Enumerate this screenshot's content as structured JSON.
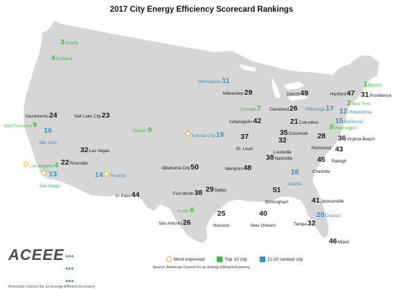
{
  "title": "2017 City Energy Efficiency Scorecard Rankings",
  "colors": {
    "top10": "#3cbe3c",
    "rank11_20": "#2b95cf",
    "other": "#1a1a1a",
    "most_improved": "#e0b33a",
    "land": "#d6d6d6"
  },
  "cities": [
    {
      "id": "seattle",
      "rank": "3",
      "name": "Seattle",
      "tier": "top10",
      "mi": false,
      "layout": "num-name"
    },
    {
      "id": "portland",
      "rank": "4",
      "name": "Portland",
      "tier": "top10",
      "mi": false,
      "layout": "num-name"
    },
    {
      "id": "minneapolis",
      "rank": "11",
      "name": "Minneapolis",
      "tier": "mid",
      "mi": false,
      "layout": "name-num"
    },
    {
      "id": "boston",
      "rank": "1",
      "name": "Boston",
      "tier": "top10",
      "mi": false,
      "layout": "num-name"
    },
    {
      "id": "newyork",
      "rank": "2",
      "name": "New York",
      "tier": "top10",
      "mi": false,
      "layout": "num-name"
    },
    {
      "id": "hartford",
      "rank": "47",
      "name": "Hartford",
      "tier": "rest",
      "mi": false,
      "layout": "name-num"
    },
    {
      "id": "providence",
      "rank": "31",
      "name": "Providence",
      "tier": "rest",
      "mi": false,
      "layout": "num-name"
    },
    {
      "id": "milwaukee",
      "rank": "29",
      "name": "Milwaukee",
      "tier": "rest",
      "mi": false,
      "layout": "name-num"
    },
    {
      "id": "detroit",
      "rank": "49",
      "name": "Detroit",
      "tier": "rest",
      "mi": false,
      "layout": "name-num"
    },
    {
      "id": "philadelphia",
      "rank": "12",
      "name": "Philadelphia",
      "tier": "mid",
      "mi": false,
      "layout": "num-name"
    },
    {
      "id": "chicago",
      "rank": "7",
      "name": "Chicago",
      "tier": "top10",
      "mi": false,
      "layout": "name-num"
    },
    {
      "id": "cleveland",
      "rank": "26",
      "name": "Cleveland",
      "tier": "rest",
      "mi": false,
      "layout": "name-num"
    },
    {
      "id": "pittsburgh",
      "rank": "17",
      "name": "Pittsburgh",
      "tier": "mid",
      "mi": false,
      "layout": "name-num"
    },
    {
      "id": "baltimore",
      "rank": "15",
      "name": "Baltimore",
      "tier": "mid",
      "mi": false,
      "layout": "num-name"
    },
    {
      "id": "washington",
      "rank": "8",
      "name": "Washington",
      "tier": "top10",
      "mi": false,
      "layout": "num-name"
    },
    {
      "id": "sacramento",
      "rank": "24",
      "name": "Sacramento",
      "tier": "rest",
      "mi": false,
      "layout": "name-num"
    },
    {
      "id": "saltlake",
      "rank": "23",
      "name": "Salt Lake City",
      "tier": "rest",
      "mi": false,
      "layout": "name-num"
    },
    {
      "id": "indianapolis",
      "rank": "42",
      "name": "Indianapolis",
      "tier": "rest",
      "mi": false,
      "layout": "name-num"
    },
    {
      "id": "columbus",
      "rank": "21",
      "name": "Columbus",
      "tier": "rest",
      "mi": false,
      "layout": "num-name"
    },
    {
      "id": "sanfrancisco",
      "rank": "9",
      "name": "San Francisco",
      "tier": "top10",
      "mi": false,
      "layout": "name-num"
    },
    {
      "id": "denver",
      "rank": "9",
      "name": "Denver",
      "tier": "top10",
      "mi": false,
      "layout": "name-num"
    },
    {
      "id": "kansascity",
      "rank": "19",
      "name": "Kansas City",
      "tier": "mid",
      "mi": true,
      "layout": "name-num"
    },
    {
      "id": "stlouis",
      "rank": "37",
      "name": "St. Louis",
      "tier": "rest",
      "mi": false,
      "layout": "num-over"
    },
    {
      "id": "cincinnati",
      "rank": "35",
      "name": "Cincinnati",
      "tier": "rest",
      "mi": false,
      "layout": "num-name"
    },
    {
      "id": "sanjose",
      "rank": "16",
      "name": "San Jose",
      "tier": "mid",
      "mi": false,
      "layout": "num-over"
    },
    {
      "id": "richmond",
      "rank": "28",
      "name": "Richmond",
      "tier": "rest",
      "mi": false,
      "layout": "num-over"
    },
    {
      "id": "virginiabeach",
      "rank": "36",
      "name": "Virginia Beach",
      "tier": "rest",
      "mi": false,
      "layout": "num-name"
    },
    {
      "id": "louisville",
      "rank": "32",
      "name": "Louisville",
      "tier": "rest",
      "mi": false,
      "layout": "num-over"
    },
    {
      "id": "lasvegas",
      "rank": "32",
      "name": "Las Vegas",
      "tier": "rest",
      "mi": false,
      "layout": "num-name"
    },
    {
      "id": "raleigh",
      "rank": "43",
      "name": "Raleigh",
      "tier": "rest",
      "mi": false,
      "layout": "num-over"
    },
    {
      "id": "nashville",
      "rank": "38",
      "name": "Nashville",
      "tier": "rest",
      "mi": false,
      "layout": "num-name"
    },
    {
      "id": "losangeles",
      "rank": "4",
      "name": "Los Angeles",
      "tier": "top10",
      "mi": true,
      "layout": "name-num"
    },
    {
      "id": "riverside",
      "rank": "22",
      "name": "Riverside",
      "tier": "rest",
      "mi": false,
      "layout": "num-name"
    },
    {
      "id": "charlotte",
      "rank": "45",
      "name": "Charlotte",
      "tier": "rest",
      "mi": false,
      "layout": "num-over"
    },
    {
      "id": "oklahoma",
      "rank": "50",
      "name": "Oklahoma City",
      "tier": "rest",
      "mi": false,
      "layout": "name-num"
    },
    {
      "id": "memphis",
      "rank": "48",
      "name": "Memphis",
      "tier": "rest",
      "mi": false,
      "layout": "name-num"
    },
    {
      "id": "atlanta",
      "rank": "18",
      "name": "Atlanta",
      "tier": "mid",
      "mi": false,
      "layout": "num-over"
    },
    {
      "id": "sandiego",
      "rank": "13",
      "name": "San Diego",
      "tier": "mid",
      "mi": true,
      "layout": "num-over"
    },
    {
      "id": "phoenix",
      "rank": "14",
      "name": "Phoenix",
      "tier": "mid",
      "mi": true,
      "layout": "num-name"
    },
    {
      "id": "elpaso",
      "rank": "44",
      "name": "El Paso",
      "tier": "rest",
      "mi": false,
      "layout": "name-num"
    },
    {
      "id": "dallas",
      "rank": "29",
      "name": "Dallas",
      "tier": "rest",
      "mi": false,
      "layout": "num-name"
    },
    {
      "id": "fortworth",
      "rank": "38",
      "name": "Fort Worth",
      "tier": "rest",
      "mi": false,
      "layout": "name-num"
    },
    {
      "id": "birmingham",
      "rank": "51",
      "name": "Birmingham",
      "tier": "rest",
      "mi": false,
      "layout": "num-over"
    },
    {
      "id": "jacksonville",
      "rank": "41",
      "name": "Jacksonville",
      "tier": "rest",
      "mi": false,
      "layout": "num-name"
    },
    {
      "id": "austin",
      "rank": "6",
      "name": "Austin",
      "tier": "top10",
      "mi": false,
      "layout": "name-num"
    },
    {
      "id": "houston",
      "rank": "25",
      "name": "Houston",
      "tier": "rest",
      "mi": false,
      "layout": "num-over"
    },
    {
      "id": "neworleans",
      "rank": "40",
      "name": "New Orleans",
      "tier": "rest",
      "mi": false,
      "layout": "num-over"
    },
    {
      "id": "orlando",
      "rank": "20",
      "name": "Orlando",
      "tier": "mid",
      "mi": false,
      "layout": "num-name"
    },
    {
      "id": "sanantonio",
      "rank": "26",
      "name": "San Antonio",
      "tier": "rest",
      "mi": false,
      "layout": "name-num"
    },
    {
      "id": "tampa",
      "rank": "32",
      "name": "Tampa",
      "tier": "rest",
      "mi": false,
      "layout": "name-num"
    },
    {
      "id": "miami",
      "rank": "46",
      "name": "Miami",
      "tier": "rest",
      "mi": false,
      "layout": "num-name"
    }
  ],
  "legend": {
    "most_improved": "Most improved",
    "top10": "Top 10 city",
    "rank11_20": "11-20 ranked city"
  },
  "source": "Source: American Council for an Energy-Efficient Economy",
  "logo": {
    "word": "ACEEE",
    "sub": "American Council for an Energy-Efficient Economy"
  }
}
